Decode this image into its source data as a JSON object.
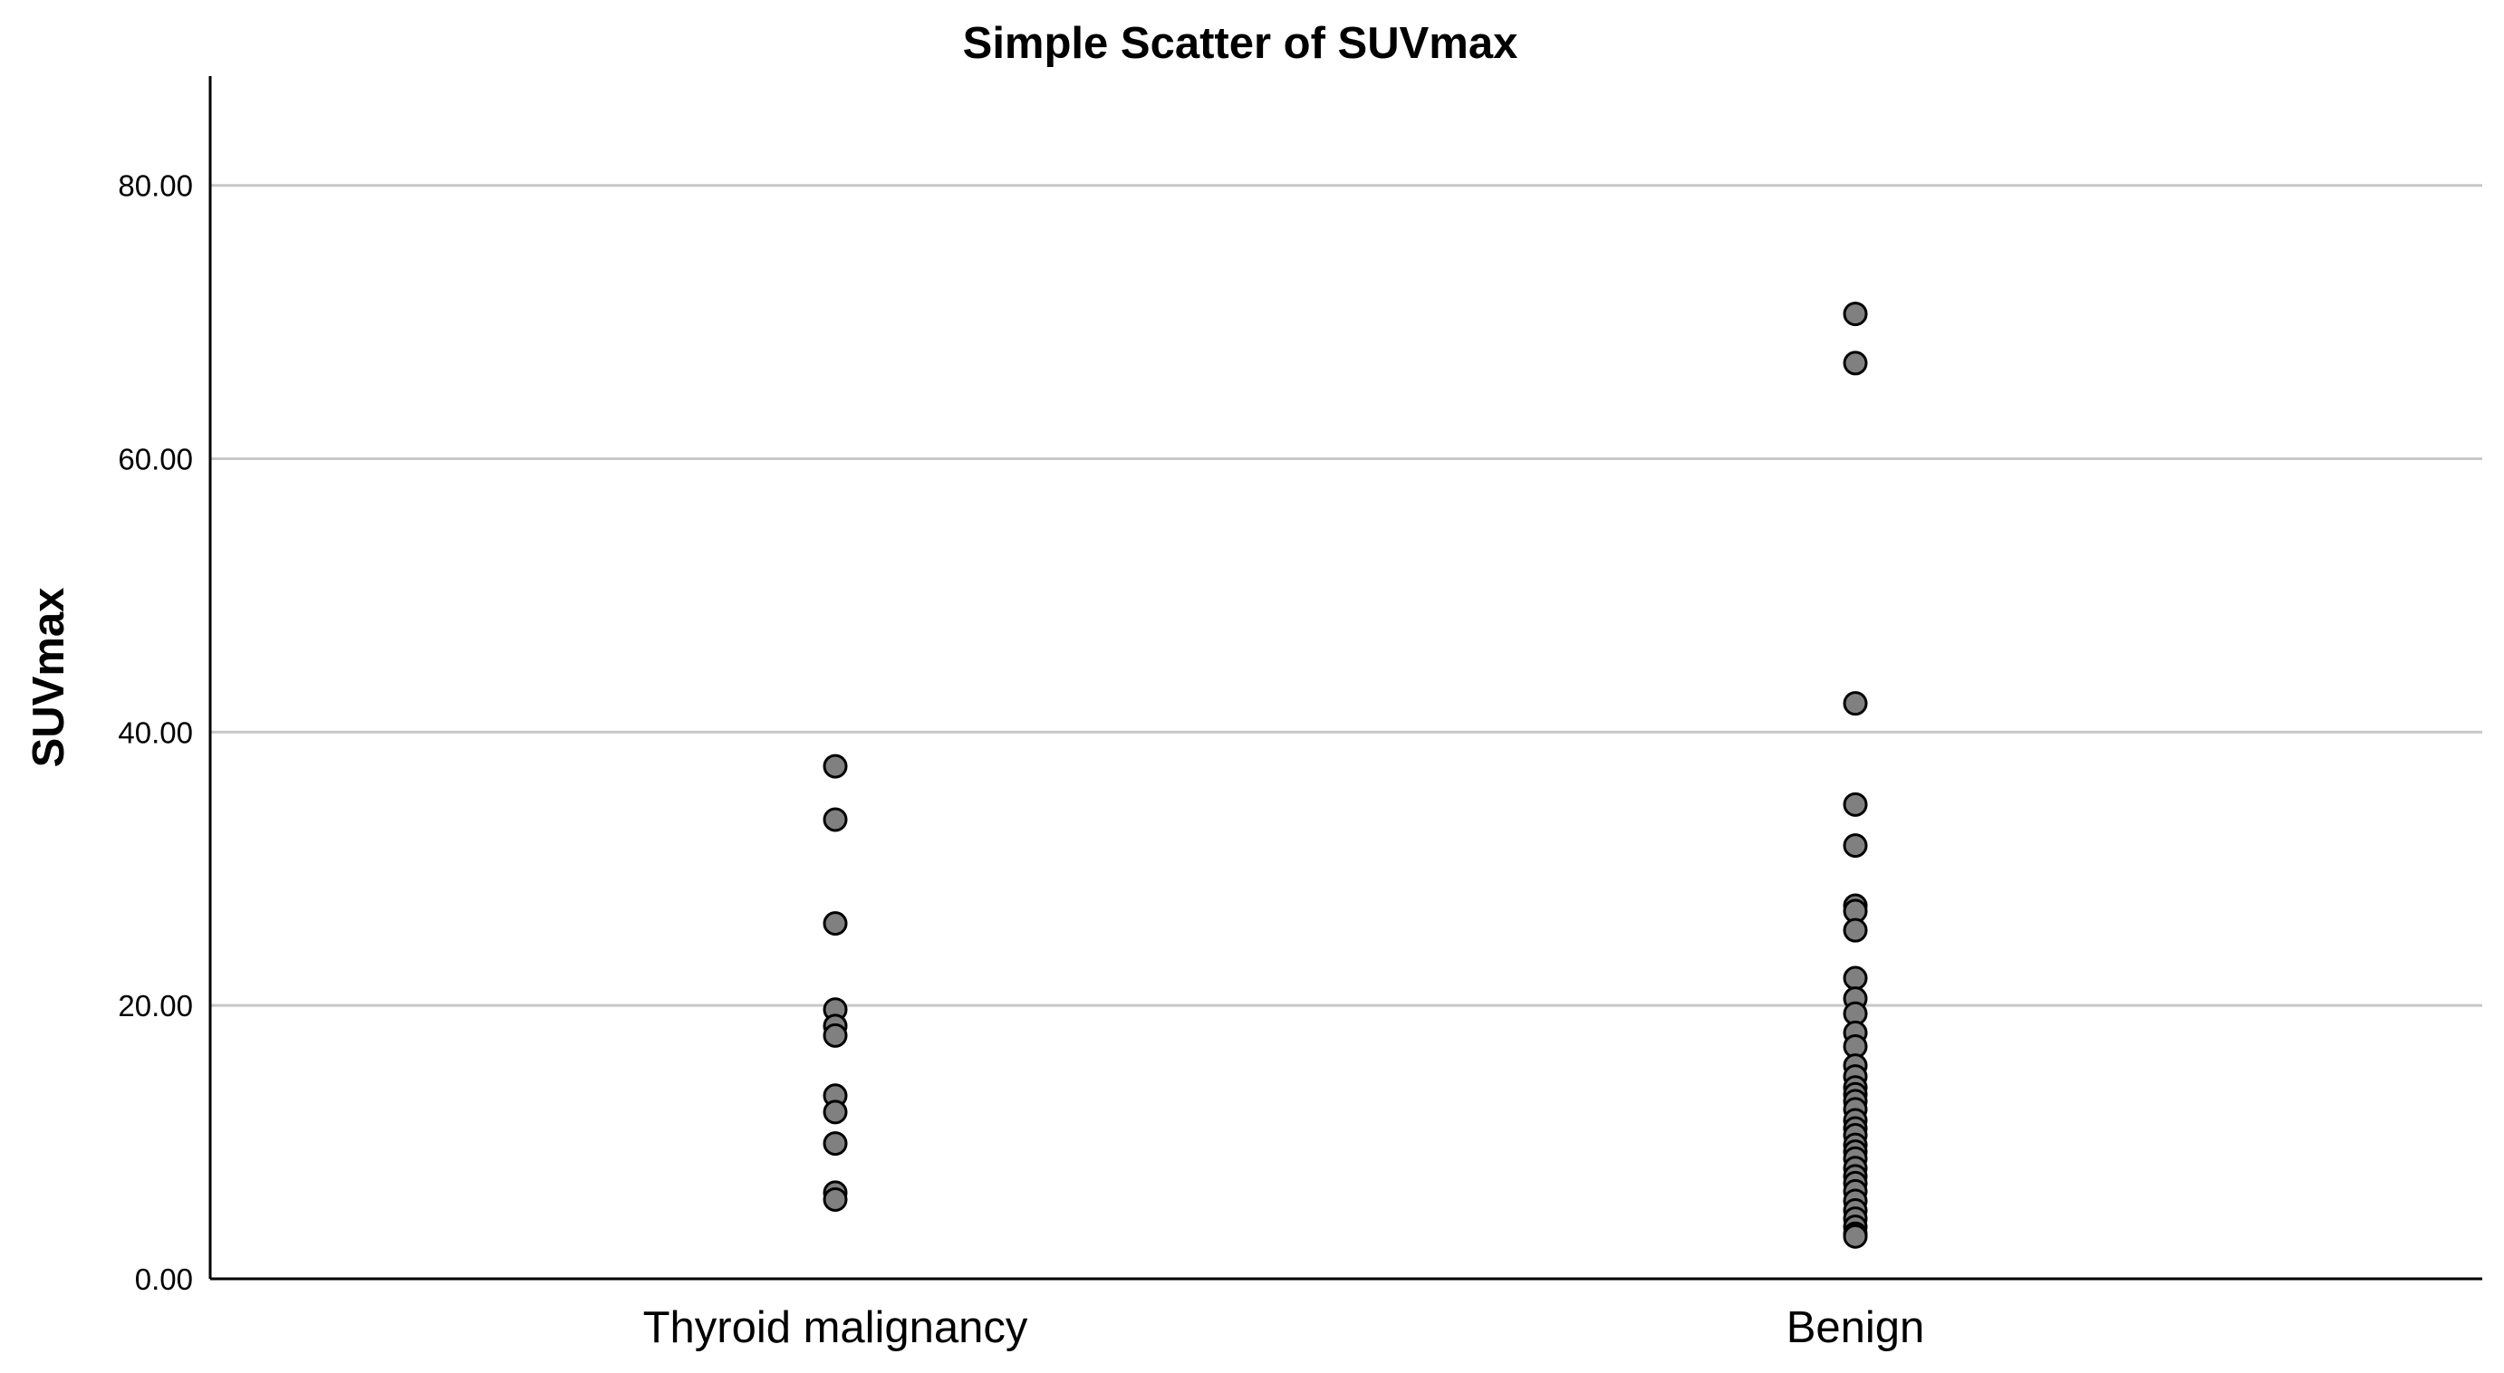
{
  "chart_data": {
    "type": "scatter",
    "title": "Simple Scatter of SUVmax",
    "xlabel": "",
    "ylabel": "SUVmax",
    "ylim": [
      0,
      88
    ],
    "yticks": [
      0,
      20,
      40,
      60,
      80
    ],
    "ytick_labels": [
      "0.00",
      "20.00",
      "40.00",
      "60.00",
      "80.00"
    ],
    "gridlines": true,
    "point_color": "#808080",
    "categories": [
      "Thyroid malignancy",
      "Benign"
    ],
    "series": [
      {
        "name": "Thyroid malignancy",
        "values": [
          37.5,
          33.6,
          26.0,
          19.7,
          18.5,
          17.8,
          13.4,
          12.2,
          9.9,
          6.3,
          5.8
        ]
      },
      {
        "name": "Benign",
        "values": [
          70.6,
          67.0,
          42.1,
          34.7,
          31.7,
          27.3,
          26.9,
          25.5,
          22.0,
          20.5,
          19.4,
          18.0,
          17.0,
          15.6,
          14.8,
          14.0,
          13.5,
          13.0,
          12.4,
          11.6,
          11.0,
          10.5,
          9.8,
          9.3,
          8.8,
          8.1,
          7.5,
          7.0,
          6.4,
          5.7,
          5.0,
          4.4,
          3.8,
          3.3,
          3.1
        ]
      }
    ]
  }
}
